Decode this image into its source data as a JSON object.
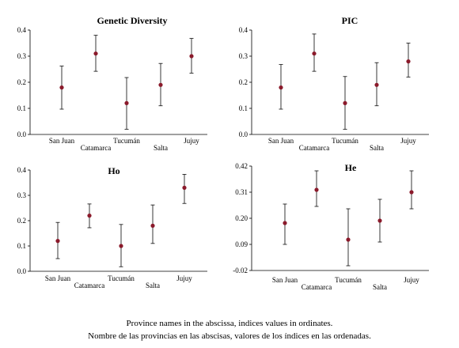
{
  "caption": {
    "line1": "Province names in the abscissa, indices values in ordinates.",
    "line2": "Nombre de las provincias en las abscisas, valores de los índices en las ordenadas."
  },
  "colors": {
    "marker": "#8b1a2b",
    "errorbar": "#222222",
    "axis": "#000000"
  },
  "chart_data": [
    {
      "type": "scatter",
      "title": "Genetic Diversity",
      "categories": [
        "San Juan",
        "Catamarca",
        "Tucumán",
        "Salta",
        "Jujuy"
      ],
      "values": [
        0.18,
        0.31,
        0.12,
        0.19,
        0.3
      ],
      "error_low": [
        0.097,
        0.242,
        0.02,
        0.11,
        0.235
      ],
      "error_high": [
        0.262,
        0.38,
        0.218,
        0.272,
        0.368
      ],
      "ylim": [
        0.0,
        0.4
      ],
      "yticks": [
        "0.0",
        "0.1",
        "0.2",
        "0.3",
        "0.4"
      ],
      "grid": false
    },
    {
      "type": "scatter",
      "title": "PIC",
      "categories": [
        "San Juan",
        "Catamarca",
        "Tucumán",
        "Salta",
        "Jujuy"
      ],
      "values": [
        0.18,
        0.31,
        0.12,
        0.19,
        0.28
      ],
      "error_low": [
        0.097,
        0.242,
        0.02,
        0.11,
        0.22
      ],
      "error_high": [
        0.268,
        0.385,
        0.222,
        0.275,
        0.35
      ],
      "ylim": [
        0.0,
        0.4
      ],
      "yticks": [
        "0.0",
        "0.1",
        "0.2",
        "0.3",
        "0.4"
      ],
      "grid": false
    },
    {
      "type": "scatter",
      "title": "Ho",
      "categories": [
        "San Juan",
        "Catamarca",
        "Tucumán",
        "Salta",
        "Jujuy"
      ],
      "values": [
        0.12,
        0.22,
        0.1,
        0.18,
        0.33
      ],
      "error_low": [
        0.05,
        0.172,
        0.018,
        0.11,
        0.268
      ],
      "error_high": [
        0.193,
        0.266,
        0.185,
        0.262,
        0.383
      ],
      "ylim": [
        0.0,
        0.4
      ],
      "yticks": [
        "0.0",
        "0.1",
        "0.2",
        "0.3",
        "0.4"
      ],
      "grid": false
    },
    {
      "type": "scatter",
      "title": "He",
      "categories": [
        "San Juan",
        "Catamarca",
        "Tucumán",
        "Salta",
        "Jujuy"
      ],
      "values": [
        0.18,
        0.32,
        0.11,
        0.19,
        0.31
      ],
      "error_low": [
        0.09,
        0.25,
        0.0,
        0.1,
        0.24
      ],
      "error_high": [
        0.26,
        0.4,
        0.24,
        0.28,
        0.4
      ],
      "ylim": [
        -0.02,
        0.42
      ],
      "yticks": [
        "-0.02",
        "0.09",
        "0.20",
        "0.31",
        "0.42"
      ],
      "grid": false
    }
  ]
}
